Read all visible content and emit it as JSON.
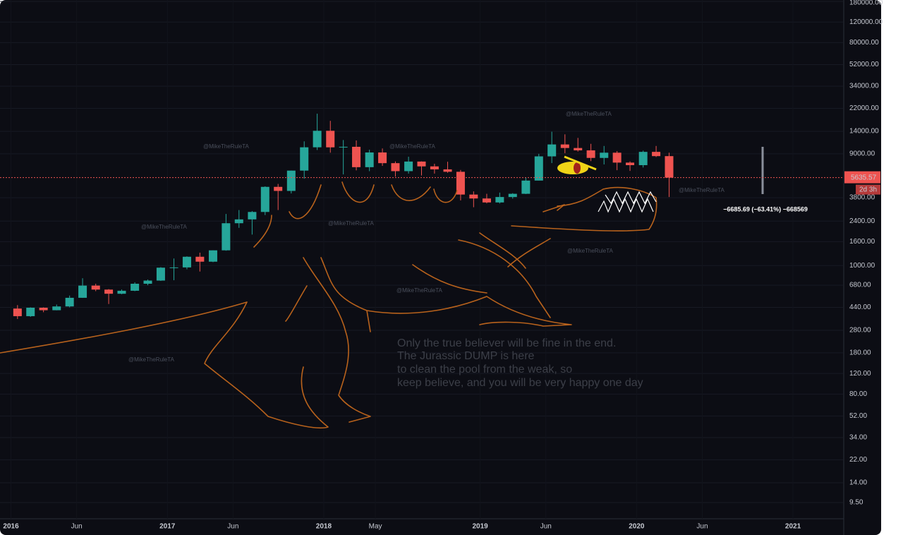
{
  "chart_data": {
    "type": "candlestick",
    "log_scale": true,
    "grid": true,
    "up_color": "#26a69a",
    "down_color": "#ef5350",
    "xlim": [
      2015.93,
      2021.32
    ],
    "ylim": [
      6.9,
      185000
    ],
    "xticks": [
      2016,
      {
        "value": 2016.42,
        "label": "Jun"
      },
      2017,
      {
        "value": 2017.42,
        "label": "Jun"
      },
      2018,
      {
        "value": 2018.33,
        "label": "May"
      },
      2019,
      {
        "value": 2019.42,
        "label": "Jun"
      },
      2020,
      {
        "value": 2020.42,
        "label": "Jun"
      },
      2021
    ],
    "yticks": [
      {
        "value": 180000,
        "label": "180000.00"
      },
      {
        "value": 120000,
        "label": "120000.00"
      },
      {
        "value": 80000,
        "label": "80000.00"
      },
      {
        "value": 52000,
        "label": "52000.00"
      },
      {
        "value": 34000,
        "label": "34000.00"
      },
      {
        "value": 22000,
        "label": "22000.00"
      },
      {
        "value": 14000,
        "label": "14000.00"
      },
      {
        "value": 9000,
        "label": "9000.00"
      },
      {
        "value": 3800,
        "label": "3800.00"
      },
      {
        "value": 2400,
        "label": "2400.00"
      },
      {
        "value": 1600,
        "label": "1600.00"
      },
      {
        "value": 1000,
        "label": "1000.00"
      },
      {
        "value": 680,
        "label": "680.00"
      },
      {
        "value": 440,
        "label": "440.00"
      },
      {
        "value": 280,
        "label": "280.00"
      },
      {
        "value": 180,
        "label": "180.00"
      },
      {
        "value": 120,
        "label": "120.00"
      },
      {
        "value": 80,
        "label": "80.00"
      },
      {
        "value": 52,
        "label": "52.00"
      },
      {
        "value": 34,
        "label": "34.00"
      },
      {
        "value": 22,
        "label": "22.00"
      },
      {
        "value": 14,
        "label": "14.00"
      },
      {
        "value": 9.5,
        "label": "9.50"
      }
    ],
    "x": [
      2016.042,
      2016.125,
      2016.208,
      2016.292,
      2016.375,
      2016.458,
      2016.542,
      2016.625,
      2016.708,
      2016.792,
      2016.875,
      2016.958,
      2017.042,
      2017.125,
      2017.208,
      2017.292,
      2017.375,
      2017.458,
      2017.542,
      2017.625,
      2017.708,
      2017.792,
      2017.875,
      2017.958,
      2018.042,
      2018.125,
      2018.208,
      2018.292,
      2018.375,
      2018.458,
      2018.542,
      2018.625,
      2018.708,
      2018.792,
      2018.875,
      2018.958,
      2019.042,
      2019.125,
      2019.208,
      2019.292,
      2019.375,
      2019.458,
      2019.542,
      2019.625,
      2019.708,
      2019.792,
      2019.875,
      2019.958,
      2020.042,
      2020.125,
      2020.208
    ],
    "open": [
      430,
      370,
      437,
      416,
      448,
      531,
      675,
      624,
      575,
      610,
      700,
      745,
      960,
      965,
      1190,
      1080,
      1350,
      2300,
      2480,
      2870,
      4700,
      4340,
      6470,
      10230,
      14150,
      10220,
      10330,
      6920,
      9240,
      7490,
      6400,
      7730,
      7030,
      6630,
      6320,
      4040,
      3740,
      3460,
      3850,
      4100,
      5320,
      8560,
      10820,
      10090,
      9630,
      8300,
      9200,
      7570,
      7200,
      9350,
      8600
    ],
    "high": [
      460,
      440,
      440,
      465,
      555,
      780,
      700,
      630,
      625,
      720,
      760,
      970,
      1150,
      1200,
      1290,
      1350,
      2760,
      2980,
      2920,
      4750,
      4980,
      6470,
      11500,
      19800,
      17200,
      11800,
      11700,
      9750,
      10000,
      7750,
      8500,
      7760,
      7400,
      7700,
      6550,
      4300,
      4100,
      4200,
      4150,
      5640,
      9000,
      13900,
      13200,
      12300,
      10950,
      10500,
      9500,
      7750,
      9580,
      10500,
      9200
    ],
    "low": [
      350,
      365,
      400,
      415,
      440,
      530,
      605,
      470,
      570,
      605,
      680,
      740,
      750,
      930,
      890,
      1070,
      1340,
      2100,
      1840,
      2700,
      2980,
      4130,
      5520,
      9700,
      9200,
      6000,
      6500,
      6400,
      7100,
      5750,
      6100,
      5880,
      6100,
      6200,
      3600,
      3150,
      3400,
      3390,
      3730,
      4080,
      5330,
      7500,
      9100,
      9400,
      7800,
      7300,
      6520,
      6430,
      6880,
      8450,
      3850
    ],
    "close": [
      370,
      437,
      416,
      448,
      531,
      675,
      624,
      575,
      610,
      700,
      745,
      960,
      965,
      1190,
      1080,
      1350,
      2300,
      2480,
      2870,
      4700,
      4340,
      6470,
      10230,
      14150,
      10220,
      10330,
      6920,
      9240,
      7490,
      6400,
      7730,
      7030,
      6630,
      6320,
      4040,
      3740,
      3460,
      3850,
      4100,
      5320,
      8560,
      10820,
      10090,
      9630,
      8300,
      9200,
      7570,
      7200,
      9350,
      8600,
      5635.57
    ],
    "price_line": {
      "value": 5635.57,
      "label": "5635.57"
    },
    "countdown": "2d 3h",
    "measurement": "−6685.69 (−63.41%) −668569",
    "watermarks": [
      "@MikeTheRuleTA",
      "@MikeTheRuleTA",
      "@MikeTheRuleTA",
      "@MikeTheRuleTA",
      "@MikeTheRuleTA",
      "@MikeTheRuleTA",
      "@MikeTheRuleTA",
      "@MikeTheRuleTA",
      "@MikeTheRuleTA"
    ],
    "annotation": [
      "Only the true believer will be fine in the end.",
      "The Jurassic DUMP is here",
      "to clean the pool from the weak, so",
      "keep believe, and you will be very happy one day"
    ]
  }
}
